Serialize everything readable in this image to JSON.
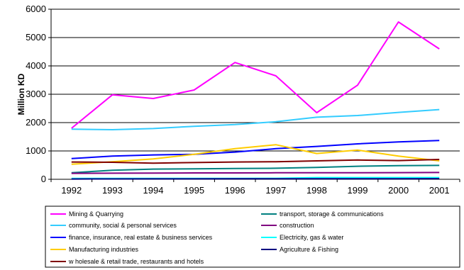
{
  "chart_data": {
    "type": "line",
    "title": "",
    "xlabel": "",
    "ylabel": "Million KD",
    "x": [
      "1992",
      "1993",
      "1994",
      "1995",
      "1996",
      "1997",
      "1998",
      "1999",
      "2000",
      "2001"
    ],
    "ylim": [
      0,
      6000
    ],
    "yticks": [
      0,
      1000,
      2000,
      3000,
      4000,
      5000,
      6000
    ],
    "grid": "horizontal",
    "legend_position": "bottom",
    "series": [
      {
        "name": "Mining & Quarrying",
        "color": "#ff00ff",
        "values": [
          1800,
          2980,
          2850,
          3150,
          4120,
          3650,
          2350,
          3320,
          5550,
          4600
        ]
      },
      {
        "name": "transport, storage & communications",
        "color": "#008080",
        "values": [
          230,
          320,
          360,
          370,
          380,
          390,
          420,
          460,
          480,
          490
        ]
      },
      {
        "name": "community, social & personal services",
        "color": "#33ccff",
        "values": [
          1770,
          1750,
          1790,
          1870,
          1930,
          2030,
          2190,
          2250,
          2360,
          2460
        ]
      },
      {
        "name": "construction",
        "color": "#800080",
        "values": [
          210,
          215,
          220,
          225,
          225,
          230,
          230,
          230,
          235,
          240
        ]
      },
      {
        "name": "finance, insurance, real estate & business services",
        "color": "#0000ff",
        "values": [
          730,
          820,
          860,
          880,
          960,
          1080,
          1160,
          1250,
          1320,
          1370
        ]
      },
      {
        "name": "Electricity, gas & water",
        "color": "#00ffff",
        "values": [
          30,
          30,
          30,
          30,
          30,
          35,
          60,
          60,
          60,
          60
        ]
      },
      {
        "name": "Manufacturing industries",
        "color": "#ffcc00",
        "values": [
          530,
          620,
          720,
          880,
          1080,
          1220,
          910,
          1030,
          820,
          650
        ]
      },
      {
        "name": "Agriculture & Fishing",
        "color": "#000080",
        "values": [
          10,
          12,
          14,
          16,
          18,
          18,
          20,
          20,
          20,
          22
        ]
      },
      {
        "name": "w holesale & retail trade, restaurants and hotels",
        "color": "#800000",
        "values": [
          610,
          600,
          570,
          590,
          610,
          620,
          650,
          680,
          660,
          700
        ]
      }
    ]
  }
}
